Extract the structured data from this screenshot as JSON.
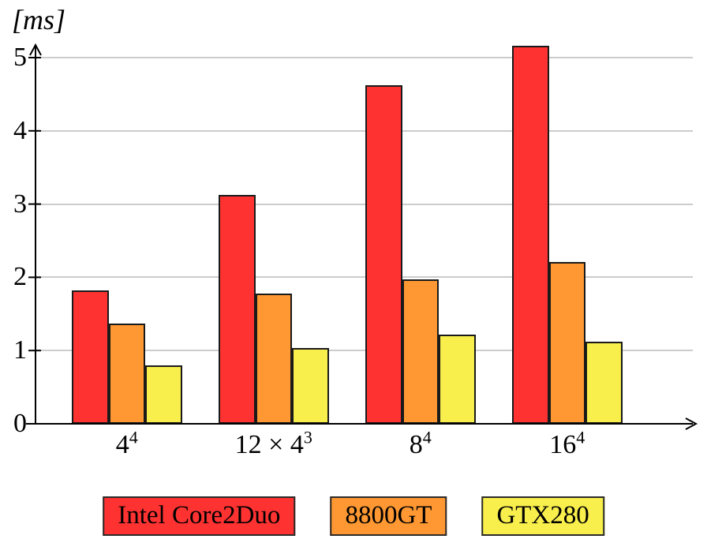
{
  "chart": {
    "y_axis_unit": "[ms]"
  },
  "chart_data": {
    "type": "bar",
    "title": "",
    "y_unit_label": "[ms]",
    "xlabel": "",
    "ylabel": "[ms]",
    "categories": [
      {
        "label": "4^4",
        "base": "4",
        "sup": "4"
      },
      {
        "label": "12 × 4^3",
        "base": "12 × 4",
        "sup": "3"
      },
      {
        "label": "8^4",
        "base": "8",
        "sup": "4"
      },
      {
        "label": "16^4",
        "base": "16",
        "sup": "4"
      }
    ],
    "series": [
      {
        "name": "Intel Core2Duo",
        "color": "#FF3232",
        "values": [
          1.82,
          3.12,
          4.62,
          5.16
        ]
      },
      {
        "name": "8800GT",
        "color": "#FF9832",
        "values": [
          1.37,
          1.78,
          1.97,
          2.21
        ]
      },
      {
        "name": "GTX280",
        "color": "#F8EE4C",
        "values": [
          0.8,
          1.03,
          1.22,
          1.12
        ]
      }
    ],
    "yticks": [
      0,
      1,
      2,
      3,
      4,
      5
    ],
    "ylim": [
      0,
      5.35
    ],
    "grid": "horizontal",
    "legend_position": "bottom",
    "colors": {
      "axis": "#000000",
      "gridline": "#cccccc",
      "bar_border": "#1a1a1a"
    }
  }
}
